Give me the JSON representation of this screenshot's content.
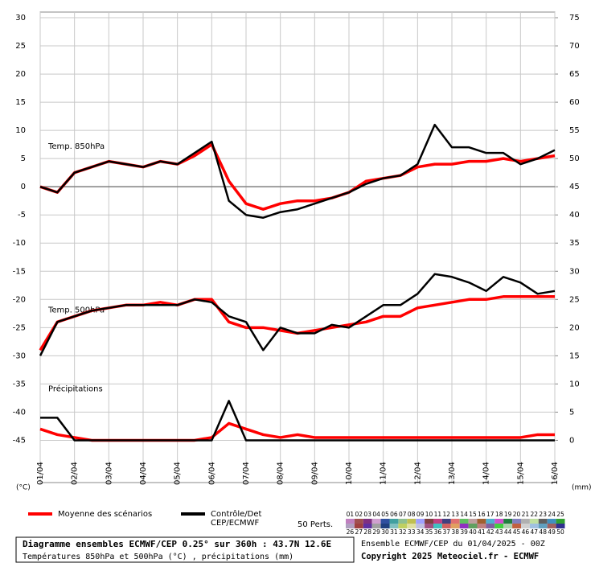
{
  "chart_data": {
    "type": "line",
    "categories": [
      "01/04",
      null,
      "02/04",
      null,
      "03/04",
      null,
      "04/04",
      null,
      "05/04",
      null,
      "06/04",
      null,
      "07/04",
      null,
      "08/04",
      null,
      "09/04",
      null,
      "10/04",
      null,
      "11/04",
      null,
      "12/04",
      null,
      "13/04",
      null,
      "14/04",
      null,
      "15/04",
      null,
      "16/04"
    ],
    "ylim": [
      -52.5,
      31
    ],
    "yticks": [
      30,
      25,
      20,
      15,
      10,
      5,
      0,
      -5,
      -10,
      -15,
      -20,
      -25,
      -30,
      -35,
      -40,
      -45
    ],
    "y2lim": [
      -7.5,
      76
    ],
    "y2ticks": [
      75,
      70,
      65,
      60,
      55,
      50,
      45,
      40,
      35,
      30,
      25,
      20,
      15,
      10,
      5,
      0
    ],
    "y_unit": "(°C)",
    "y2_unit": "(mm)",
    "grid": true,
    "zero_line": 0,
    "legend": [
      {
        "lines": [
          "Moyenne des scénarios"
        ],
        "color": "#ff0000"
      },
      {
        "lines": [
          "Contrôle/Det",
          "CEP/ECMWF"
        ],
        "color": "#000000"
      }
    ],
    "panels": [
      {
        "label": "Temp. 850hPa",
        "axis": "y",
        "series": [
          {
            "values": [
              0,
              -1,
              2.5,
              3.5,
              4.5,
              4,
              3.5,
              4.5,
              4,
              5.5,
              7.5,
              1,
              -3,
              -4,
              -3,
              -2.5,
              -2.5,
              -2,
              -1,
              1,
              1.5,
              2,
              3.5,
              4,
              4,
              4.5,
              4.5,
              5,
              4.5,
              5,
              5.5
            ]
          },
          {
            "values": [
              0,
              -1,
              2.5,
              3.5,
              4.5,
              4,
              3.5,
              4.5,
              4,
              6,
              8,
              -2.5,
              -5,
              -5.5,
              -4.5,
              -4,
              -3,
              -2,
              -1,
              0.5,
              1.5,
              2,
              4,
              11,
              7,
              7,
              6,
              6,
              4,
              5,
              6.5
            ]
          }
        ]
      },
      {
        "label": "Temp. 500hPa",
        "axis": "y",
        "series": [
          {
            "values": [
              -29,
              -24,
              -23,
              -22,
              -21.5,
              -21,
              -21,
              -20.5,
              -21,
              -20,
              -20,
              -24,
              -25,
              -25,
              -25.5,
              -26,
              -25.5,
              -25,
              -24.5,
              -24,
              -23,
              -23,
              -21.5,
              -21,
              -20.5,
              -20,
              -20,
              -19.5,
              -19.5,
              -19.5,
              -19.5
            ]
          },
          {
            "values": [
              -30,
              -24,
              -23,
              -22,
              -21.5,
              -21,
              -21,
              -21,
              -21,
              -20,
              -20.5,
              -23,
              -24,
              -29,
              -25,
              -26,
              -26,
              -24.5,
              -25,
              -23,
              -21,
              -21,
              -19,
              -15.5,
              -16,
              -17,
              -18.5,
              -16,
              -17,
              -19,
              -18.5
            ]
          }
        ]
      },
      {
        "label": "Précipitations",
        "axis": "y2",
        "series": [
          {
            "values": [
              2,
              1,
              0.5,
              0,
              0,
              0,
              0,
              0,
              0,
              0,
              0.5,
              3,
              2,
              1,
              0.5,
              1,
              0.5,
              0.5,
              0.5,
              0.5,
              0.5,
              0.5,
              0.5,
              0.5,
              0.5,
              0.5,
              0.5,
              0.5,
              0.5,
              1,
              1
            ]
          },
          {
            "values": [
              4,
              4,
              0,
              0,
              0,
              0,
              0,
              0,
              0,
              0,
              0,
              7,
              0,
              0,
              0,
              0,
              0,
              0,
              0,
              0,
              0,
              0,
              0,
              0,
              0,
              0,
              0,
              0,
              0,
              0,
              0
            ]
          }
        ]
      }
    ],
    "members_title": "50 Perts.",
    "members": [
      {
        "name": "01",
        "color": "#c080c0"
      },
      {
        "name": "02",
        "color": "#a05050"
      },
      {
        "name": "03",
        "color": "#803080"
      },
      {
        "name": "04",
        "color": "#d0a0d0"
      },
      {
        "name": "05",
        "color": "#3050a0"
      },
      {
        "name": "06",
        "color": "#40a0a0"
      },
      {
        "name": "07",
        "color": "#90c090"
      },
      {
        "name": "08",
        "color": "#c0c050"
      },
      {
        "name": "09",
        "color": "#a0a0ff"
      },
      {
        "name": "10",
        "color": "#804040"
      },
      {
        "name": "11",
        "color": "#c04080"
      },
      {
        "name": "12",
        "color": "#404080"
      },
      {
        "name": "13",
        "color": "#e07070"
      },
      {
        "name": "14",
        "color": "#60c060"
      },
      {
        "name": "15",
        "color": "#c0a0a0"
      },
      {
        "name": "16",
        "color": "#a06030"
      },
      {
        "name": "17",
        "color": "#50b0d0"
      },
      {
        "name": "18",
        "color": "#d050d0"
      },
      {
        "name": "19",
        "color": "#208040"
      },
      {
        "name": "20",
        "color": "#8080c0"
      },
      {
        "name": "21",
        "color": "#b0b0b0"
      },
      {
        "name": "22",
        "color": "#c0e0a0"
      },
      {
        "name": "23",
        "color": "#606060"
      },
      {
        "name": "24",
        "color": "#4090c0"
      },
      {
        "name": "25",
        "color": "#30a030"
      },
      {
        "name": "26",
        "color": "#b0a0c0"
      },
      {
        "name": "27",
        "color": "#a04040"
      },
      {
        "name": "28",
        "color": "#6030a0"
      },
      {
        "name": "29",
        "color": "#a0a0a0"
      },
      {
        "name": "30",
        "color": "#204080"
      },
      {
        "name": "31",
        "color": "#80c0c0"
      },
      {
        "name": "32",
        "color": "#c0d060"
      },
      {
        "name": "33",
        "color": "#e0e0a0"
      },
      {
        "name": "34",
        "color": "#c0c0e0"
      },
      {
        "name": "35",
        "color": "#a05080"
      },
      {
        "name": "36",
        "color": "#40c0c0"
      },
      {
        "name": "37",
        "color": "#d06060"
      },
      {
        "name": "38",
        "color": "#e0a060"
      },
      {
        "name": "39",
        "color": "#9030c0"
      },
      {
        "name": "40",
        "color": "#60a060"
      },
      {
        "name": "41",
        "color": "#c08080"
      },
      {
        "name": "42",
        "color": "#8060a0"
      },
      {
        "name": "43",
        "color": "#40d040"
      },
      {
        "name": "44",
        "color": "#b0d0b0"
      },
      {
        "name": "45",
        "color": "#c06040"
      },
      {
        "name": "46",
        "color": "#d0d0d0"
      },
      {
        "name": "47",
        "color": "#a0c0e0"
      },
      {
        "name": "48",
        "color": "#60a0c0"
      },
      {
        "name": "49",
        "color": "#a06060"
      },
      {
        "name": "50",
        "color": "#303090"
      }
    ],
    "info_title": "Diagramme ensembles ECMWF/CEP 0.25° sur 360h : 43.7N 12.6E",
    "info_subtitle": "Températures 850hPa et 500hPa (°C) , précipitations (mm)",
    "run": "Ensemble ECMWF/CEP du 01/04/2025 - 00Z",
    "copyright": "Copyright 2025 Meteociel.fr - ECMWF"
  }
}
